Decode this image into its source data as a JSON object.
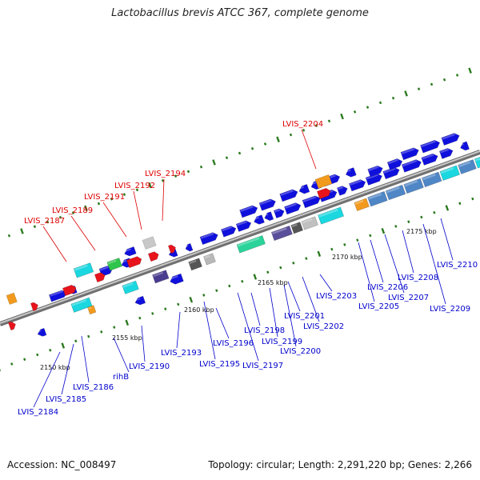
{
  "header": {
    "title": "Lactobacillus brevis ATCC 367, complete genome"
  },
  "footer": {
    "accession": "Accession: NC_008497",
    "stats": "Topology: circular; Length: 2,291,220 bp; Genes: 2,266"
  },
  "colors": {
    "forward_label": "#0000cc",
    "reverse_label": "#dd0000",
    "backbone": "#8c8c8c",
    "tick": "#2b7a1f"
  },
  "scale_labels": [
    "2150 kbp",
    "2155 kbp",
    "2160 kbp",
    "2165 kbp",
    "2170 kbp",
    "2175 kbp"
  ],
  "gene_labels": {
    "reverse": [
      "LVIS_2187",
      "LVIS_2189",
      "LVIS_2191",
      "LVIS_2192",
      "LVIS_2194",
      "LVIS_2204"
    ],
    "forward": [
      "LVIS_2184",
      "LVIS_2185",
      "LVIS_2186",
      "rihB",
      "LVIS_2190",
      "LVIS_2193",
      "LVIS_2195",
      "LVIS_2196",
      "LVIS_2197",
      "LVIS_2198",
      "LVIS_2199",
      "LVIS_2200",
      "LVIS_2201",
      "LVIS_2202",
      "LVIS_2203",
      "LVIS_2205",
      "LVIS_2206",
      "LVIS_2207",
      "LVIS_2208",
      "LVIS_2209",
      "LVIS_2210"
    ]
  }
}
